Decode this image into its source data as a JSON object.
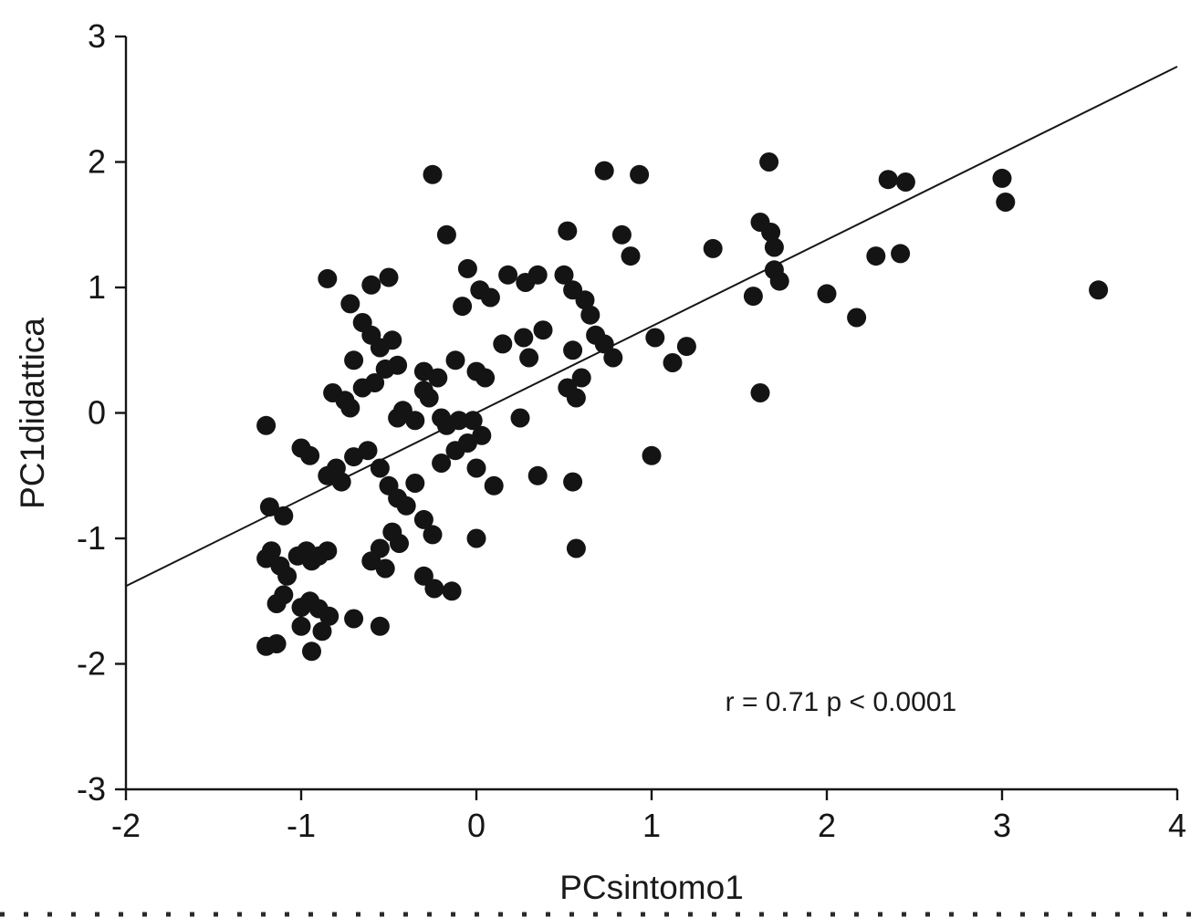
{
  "figure": {
    "background": "#ffffff",
    "ink_color": "#161616"
  },
  "chart_data": {
    "type": "scatter",
    "title": "",
    "xlabel": "PCsintomo1",
    "ylabel": "PC1didattica",
    "xlim": [
      -2,
      4
    ],
    "ylim": [
      -3,
      3
    ],
    "xticks": [
      -2,
      -1,
      0,
      1,
      2,
      3,
      4
    ],
    "yticks": [
      -3,
      -2,
      -1,
      0,
      1,
      2,
      3
    ],
    "grid": false,
    "legend": false,
    "annotation": {
      "text": "r = 0.71 p < 0.0001",
      "x": 1.42,
      "y": -2.32
    },
    "marker": {
      "shape": "circle",
      "radius_px": 10.5,
      "color": "#141414"
    },
    "regression_line": {
      "x_start": -2,
      "y_start": -1.38,
      "x_end": 4,
      "y_end": 2.76
    },
    "points": [
      [
        -0.25,
        1.9
      ],
      [
        0.73,
        1.93
      ],
      [
        0.93,
        1.9
      ],
      [
        1.67,
        2.0
      ],
      [
        2.35,
        1.86
      ],
      [
        2.45,
        1.84
      ],
      [
        3.0,
        1.87
      ],
      [
        3.02,
        1.68
      ],
      [
        3.55,
        0.98
      ],
      [
        -0.17,
        1.42
      ],
      [
        0.52,
        1.45
      ],
      [
        0.83,
        1.42
      ],
      [
        0.88,
        1.25
      ],
      [
        1.35,
        1.31
      ],
      [
        1.62,
        1.52
      ],
      [
        1.68,
        1.44
      ],
      [
        1.7,
        1.32
      ],
      [
        2.28,
        1.25
      ],
      [
        2.42,
        1.27
      ],
      [
        1.7,
        1.14
      ],
      [
        1.73,
        1.05
      ],
      [
        2.0,
        0.95
      ],
      [
        1.58,
        0.93
      ],
      [
        2.17,
        0.76
      ],
      [
        1.62,
        0.16
      ],
      [
        -0.85,
        1.07
      ],
      [
        -0.72,
        0.87
      ],
      [
        -0.6,
        1.02
      ],
      [
        -0.5,
        1.08
      ],
      [
        -0.05,
        1.15
      ],
      [
        0.02,
        0.98
      ],
      [
        0.18,
        1.1
      ],
      [
        0.28,
        1.04
      ],
      [
        0.35,
        1.1
      ],
      [
        0.5,
        1.1
      ],
      [
        0.55,
        0.98
      ],
      [
        0.62,
        0.9
      ],
      [
        0.65,
        0.78
      ],
      [
        -0.08,
        0.85
      ],
      [
        0.08,
        0.92
      ],
      [
        -0.65,
        0.72
      ],
      [
        -0.6,
        0.62
      ],
      [
        -0.55,
        0.52
      ],
      [
        -0.48,
        0.58
      ],
      [
        -0.7,
        0.42
      ],
      [
        -0.45,
        0.38
      ],
      [
        -0.52,
        0.35
      ],
      [
        -0.3,
        0.33
      ],
      [
        -0.22,
        0.28
      ],
      [
        -0.12,
        0.42
      ],
      [
        0.0,
        0.33
      ],
      [
        0.05,
        0.28
      ],
      [
        0.15,
        0.55
      ],
      [
        0.27,
        0.6
      ],
      [
        0.3,
        0.44
      ],
      [
        0.38,
        0.66
      ],
      [
        0.55,
        0.5
      ],
      [
        0.6,
        0.28
      ],
      [
        0.68,
        0.62
      ],
      [
        0.73,
        0.55
      ],
      [
        0.78,
        0.44
      ],
      [
        1.02,
        0.6
      ],
      [
        1.12,
        0.4
      ],
      [
        1.2,
        0.53
      ],
      [
        0.52,
        0.2
      ],
      [
        0.57,
        0.12
      ],
      [
        -0.82,
        0.16
      ],
      [
        -0.75,
        0.1
      ],
      [
        -0.72,
        0.04
      ],
      [
        -0.65,
        0.2
      ],
      [
        -0.58,
        0.24
      ],
      [
        -0.45,
        -0.04
      ],
      [
        -0.42,
        0.02
      ],
      [
        -0.35,
        -0.06
      ],
      [
        -0.3,
        0.18
      ],
      [
        -0.27,
        0.12
      ],
      [
        -0.2,
        -0.04
      ],
      [
        -0.17,
        -0.1
      ],
      [
        -0.1,
        -0.06
      ],
      [
        -0.02,
        -0.06
      ],
      [
        0.03,
        -0.18
      ],
      [
        0.25,
        -0.04
      ],
      [
        -1.2,
        -0.1
      ],
      [
        -1.0,
        -0.28
      ],
      [
        -0.95,
        -0.34
      ],
      [
        -0.85,
        -0.5
      ],
      [
        -0.8,
        -0.44
      ],
      [
        -0.77,
        -0.55
      ],
      [
        -0.7,
        -0.35
      ],
      [
        -0.62,
        -0.3
      ],
      [
        -0.55,
        -0.44
      ],
      [
        -0.5,
        -0.58
      ],
      [
        -0.45,
        -0.68
      ],
      [
        -0.4,
        -0.74
      ],
      [
        -0.35,
        -0.56
      ],
      [
        -0.2,
        -0.4
      ],
      [
        -0.12,
        -0.3
      ],
      [
        -0.05,
        -0.24
      ],
      [
        0.0,
        -0.44
      ],
      [
        0.1,
        -0.58
      ],
      [
        0.35,
        -0.5
      ],
      [
        0.55,
        -0.55
      ],
      [
        0.57,
        -1.08
      ],
      [
        1.0,
        -0.34
      ],
      [
        -1.18,
        -0.75
      ],
      [
        -1.1,
        -0.82
      ],
      [
        -0.3,
        -0.85
      ],
      [
        -0.25,
        -0.97
      ],
      [
        -0.48,
        -0.95
      ],
      [
        -1.17,
        -1.1
      ],
      [
        -1.2,
        -1.16
      ],
      [
        -1.12,
        -1.22
      ],
      [
        -1.08,
        -1.3
      ],
      [
        -1.02,
        -1.14
      ],
      [
        -0.97,
        -1.1
      ],
      [
        -0.94,
        -1.18
      ],
      [
        -0.9,
        -1.14
      ],
      [
        -0.85,
        -1.1
      ],
      [
        -0.6,
        -1.18
      ],
      [
        -0.55,
        -1.08
      ],
      [
        -0.52,
        -1.24
      ],
      [
        -0.44,
        -1.04
      ],
      [
        -0.3,
        -1.3
      ],
      [
        -0.24,
        -1.4
      ],
      [
        -0.14,
        -1.42
      ],
      [
        0.0,
        -1.0
      ],
      [
        -1.1,
        -1.45
      ],
      [
        -1.14,
        -1.52
      ],
      [
        -1.0,
        -1.55
      ],
      [
        -0.95,
        -1.5
      ],
      [
        -0.9,
        -1.56
      ],
      [
        -0.84,
        -1.62
      ],
      [
        -1.0,
        -1.7
      ],
      [
        -1.14,
        -1.84
      ],
      [
        -1.2,
        -1.86
      ],
      [
        -0.94,
        -1.9
      ],
      [
        -0.88,
        -1.74
      ],
      [
        -0.7,
        -1.64
      ],
      [
        -0.55,
        -1.7
      ]
    ]
  }
}
